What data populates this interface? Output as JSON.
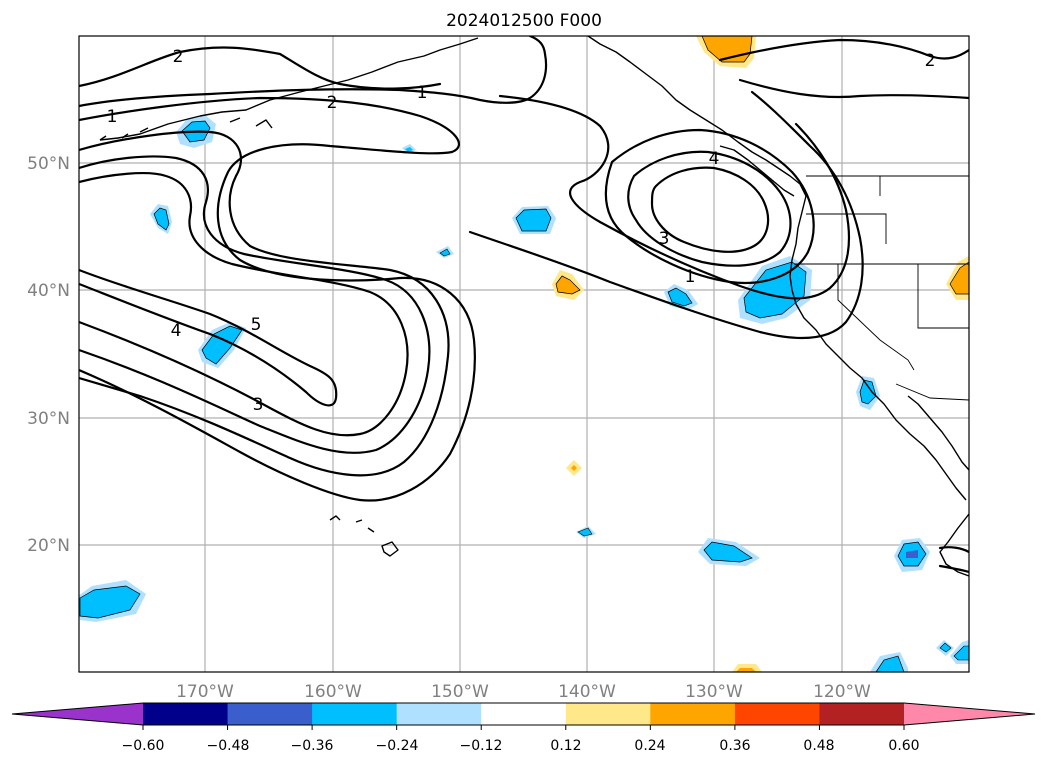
{
  "map": {
    "title": "2024012500 F000",
    "lat_labels": [
      "50°N",
      "40°N",
      "30°N",
      "20°N"
    ],
    "lon_labels": [
      "170°W",
      "160°W",
      "150°W",
      "140°W",
      "130°W",
      "120°W"
    ],
    "contour_labels": [
      "2",
      "2",
      "1",
      "1",
      "2",
      "4",
      "3",
      "1",
      "4",
      "5",
      "3"
    ],
    "colorbar": {
      "ticks": [
        "−0.60",
        "−0.48",
        "−0.36",
        "−0.24",
        "−0.12",
        "0.12",
        "0.24",
        "0.36",
        "0.48",
        "0.60"
      ],
      "colors": [
        "#9933cc",
        "#00008b",
        "#3a5fcd",
        "#00bfff",
        "#b0e0ff",
        "#ffffff",
        "#ffe88a",
        "#ffa500",
        "#ff4500",
        "#b22222",
        "#ff88aa"
      ]
    }
  }
}
